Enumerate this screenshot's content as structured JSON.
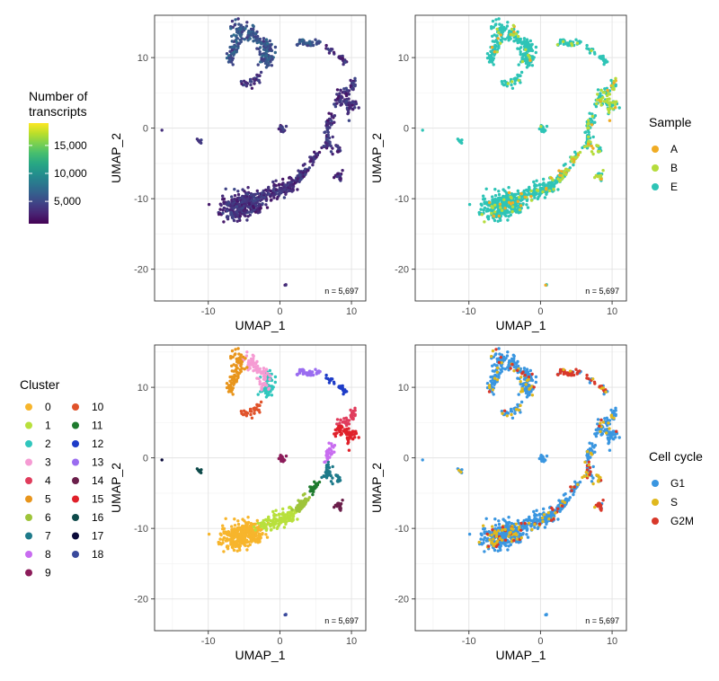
{
  "panels": [
    {
      "id": "transcripts",
      "xlabel": "UMAP_1",
      "ylabel": "UMAP_2",
      "annotation": "n = 5,697",
      "xlim": [
        -17.5,
        12
      ],
      "ylim": [
        -24.5,
        16
      ],
      "xticks": [
        -10,
        0,
        10
      ],
      "yticks": [
        10,
        0,
        -10,
        -20
      ],
      "legend": {
        "type": "colorbar",
        "title": [
          "Number of",
          "transcripts"
        ],
        "ticks": [
          {
            "value": 5000,
            "label": "5,000"
          },
          {
            "value": 10000,
            "label": "10,000"
          },
          {
            "value": 15000,
            "label": "15,000"
          }
        ],
        "range": [
          1000,
          19000
        ],
        "colors": [
          "#440154",
          "#3b528b",
          "#21918c",
          "#5ec962",
          "#fde725"
        ]
      }
    },
    {
      "id": "sample",
      "xlabel": "UMAP_1",
      "ylabel": "UMAP_2",
      "annotation": "n = 5,697",
      "xlim": [
        -17.5,
        12
      ],
      "ylim": [
        -24.5,
        16
      ],
      "xticks": [
        -10,
        0,
        10
      ],
      "yticks": [
        10,
        0,
        -10,
        -20
      ],
      "legend": {
        "type": "categorical",
        "title": "Sample",
        "items": [
          {
            "label": "A",
            "color": "#f0ac24"
          },
          {
            "label": "B",
            "color": "#b5dc3c"
          },
          {
            "label": "E",
            "color": "#2ec4b6"
          }
        ]
      }
    },
    {
      "id": "cluster",
      "xlabel": "UMAP_1",
      "ylabel": "UMAP_2",
      "annotation": "n = 5,697",
      "xlim": [
        -17.5,
        12
      ],
      "ylim": [
        -24.5,
        16
      ],
      "xticks": [
        -10,
        0,
        10
      ],
      "yticks": [
        10,
        0,
        -10,
        -20
      ],
      "legend": {
        "type": "categorical",
        "title": "Cluster",
        "items": [
          {
            "label": "0",
            "color": "#f7b52c"
          },
          {
            "label": "1",
            "color": "#b8e03c"
          },
          {
            "label": "2",
            "color": "#30c6bd"
          },
          {
            "label": "3",
            "color": "#f59bd3"
          },
          {
            "label": "4",
            "color": "#e03c5c"
          },
          {
            "label": "5",
            "color": "#e8951c"
          },
          {
            "label": "6",
            "color": "#9ec43a"
          },
          {
            "label": "7",
            "color": "#1e7a8a"
          },
          {
            "label": "8",
            "color": "#c86cf0"
          },
          {
            "label": "9",
            "color": "#8c1c5a"
          },
          {
            "label": "10",
            "color": "#e0522a"
          },
          {
            "label": "11",
            "color": "#1e7a2e"
          },
          {
            "label": "12",
            "color": "#1e3cc8"
          },
          {
            "label": "13",
            "color": "#9a6cf0"
          },
          {
            "label": "14",
            "color": "#6a1e4a"
          },
          {
            "label": "15",
            "color": "#e0202a"
          },
          {
            "label": "16",
            "color": "#0e4a4a"
          },
          {
            "label": "17",
            "color": "#0a0a3a"
          },
          {
            "label": "18",
            "color": "#3a4a9c"
          }
        ]
      }
    },
    {
      "id": "cellcycle",
      "xlabel": "UMAP_1",
      "ylabel": "UMAP_2",
      "annotation": "n = 5,697",
      "xlim": [
        -17.5,
        12
      ],
      "ylim": [
        -24.5,
        16
      ],
      "xticks": [
        -10,
        0,
        10
      ],
      "yticks": [
        10,
        0,
        -10,
        -20
      ],
      "legend": {
        "type": "categorical",
        "title": "Cell cycle",
        "items": [
          {
            "label": "G1",
            "color": "#3a96e0"
          },
          {
            "label": "S",
            "color": "#e0b81e"
          },
          {
            "label": "G2M",
            "color": "#d8382a"
          }
        ]
      }
    }
  ],
  "chart_data": [
    {
      "type": "scatter",
      "title": "",
      "xlabel": "UMAP_1",
      "ylabel": "UMAP_2",
      "xlim": [
        -17.5,
        12
      ],
      "ylim": [
        -24.5,
        16
      ],
      "color_by": "Number of transcripts",
      "annotation": "n = 5,697",
      "clusters": [
        {
          "name": "0",
          "x": [
            -8,
            -1.5
          ],
          "y": [
            -13,
            -8.5
          ],
          "approx_transcripts": 2500
        },
        {
          "name": "1",
          "x": [
            -2,
            2.5
          ],
          "y": [
            -10.5,
            -7
          ],
          "approx_transcripts": 3000
        },
        {
          "name": "2",
          "x": [
            -3,
            0
          ],
          "y": [
            8,
            12
          ],
          "approx_transcripts": 3500
        },
        {
          "name": "3",
          "x": [
            -5,
            -1
          ],
          "y": [
            10,
            14.5
          ],
          "approx_transcripts": 4000
        },
        {
          "name": "4",
          "x": [
            8,
            11
          ],
          "y": [
            1,
            6
          ],
          "approx_transcripts": 3000
        },
        {
          "name": "5",
          "x": [
            -6.5,
            -3
          ],
          "y": [
            11,
            15
          ],
          "approx_transcripts": 3500
        },
        {
          "name": "6",
          "x": [
            2,
            4
          ],
          "y": [
            -7.5,
            -5
          ],
          "approx_transcripts": 3000
        },
        {
          "name": "7",
          "x": [
            6.5,
            7.5
          ],
          "y": [
            -3.5,
            -0.5
          ],
          "approx_transcripts": 3000
        },
        {
          "name": "8",
          "x": [
            6,
            8
          ],
          "y": [
            -1,
            2
          ],
          "approx_transcripts": 3000
        },
        {
          "name": "9",
          "x": [
            -0.5,
            1
          ],
          "y": [
            -1,
            0.5
          ],
          "approx_transcripts": 3000
        },
        {
          "name": "10",
          "x": [
            -5,
            -3
          ],
          "y": [
            5.5,
            7.5
          ],
          "approx_transcripts": 3500
        },
        {
          "name": "11",
          "x": [
            4,
            5
          ],
          "y": [
            -5,
            -3.5
          ],
          "approx_transcripts": 3000
        },
        {
          "name": "12",
          "x": [
            7,
            10
          ],
          "y": [
            9,
            11
          ],
          "approx_transcripts": 4000
        },
        {
          "name": "13",
          "x": [
            2,
            7
          ],
          "y": [
            11,
            12.5
          ],
          "approx_transcripts": 4000
        },
        {
          "name": "14",
          "x": [
            7.5,
            9
          ],
          "y": [
            -8,
            -6
          ],
          "approx_transcripts": 3000
        },
        {
          "name": "15",
          "x": [
            7.5,
            10
          ],
          "y": [
            3,
            5
          ],
          "approx_transcripts": 3000
        },
        {
          "name": "16",
          "x": [
            -12,
            -10.5
          ],
          "y": [
            -2,
            -1.5
          ],
          "approx_transcripts": 3000
        },
        {
          "name": "17",
          "x": [
            -16.5,
            -16.5
          ],
          "y": [
            -0.3,
            -0.3
          ],
          "approx_transcripts": 2000
        },
        {
          "name": "18",
          "x": [
            0.5,
            1
          ],
          "y": [
            -22,
            -22
          ],
          "approx_transcripts": 3000
        }
      ]
    },
    {
      "type": "scatter",
      "title": "",
      "xlabel": "UMAP_1",
      "ylabel": "UMAP_2",
      "color_by": "Sample",
      "series": [
        {
          "name": "A",
          "share": 0.03
        },
        {
          "name": "B",
          "share": 0.12
        },
        {
          "name": "E",
          "share": 0.85
        }
      ],
      "annotation": "n = 5,697"
    },
    {
      "type": "scatter",
      "title": "",
      "xlabel": "UMAP_1",
      "ylabel": "UMAP_2",
      "color_by": "Cluster",
      "series": [
        {
          "name": "0"
        },
        {
          "name": "1"
        },
        {
          "name": "2"
        },
        {
          "name": "3"
        },
        {
          "name": "4"
        },
        {
          "name": "5"
        },
        {
          "name": "6"
        },
        {
          "name": "7"
        },
        {
          "name": "8"
        },
        {
          "name": "9"
        },
        {
          "name": "10"
        },
        {
          "name": "11"
        },
        {
          "name": "12"
        },
        {
          "name": "13"
        },
        {
          "name": "14"
        },
        {
          "name": "15"
        },
        {
          "name": "16"
        },
        {
          "name": "17"
        },
        {
          "name": "18"
        }
      ],
      "annotation": "n = 5,697"
    },
    {
      "type": "scatter",
      "title": "",
      "xlabel": "UMAP_1",
      "ylabel": "UMAP_2",
      "color_by": "Cell cycle",
      "series": [
        {
          "name": "G1",
          "share": 0.85
        },
        {
          "name": "S",
          "share": 0.1
        },
        {
          "name": "G2M",
          "share": 0.05
        }
      ],
      "annotation": "n = 5,697"
    }
  ]
}
